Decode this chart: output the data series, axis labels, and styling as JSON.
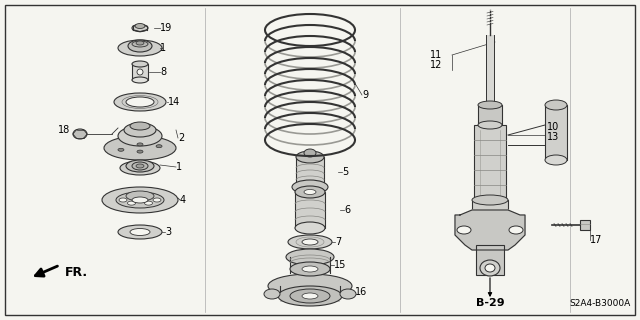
{
  "bg_color": "#f5f5f0",
  "border_color": "#222222",
  "line_color": "#333333",
  "text_color": "#000000",
  "fig_width": 6.4,
  "fig_height": 3.2,
  "dpi": 100,
  "page_code": "B-29",
  "part_code": "S2A4-B3000A",
  "label_fs": 7,
  "border_lw": 1.0,
  "part_lw": 0.8
}
